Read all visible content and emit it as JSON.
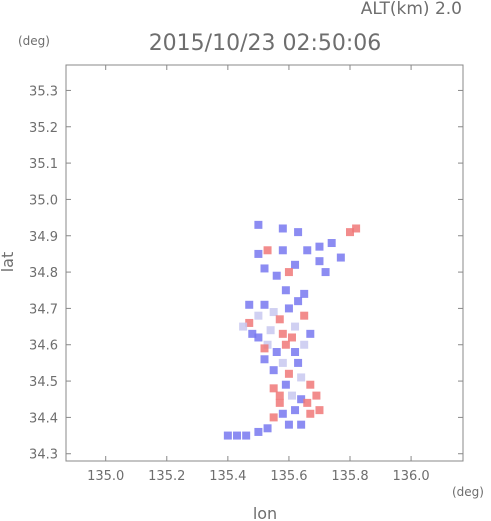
{
  "chart_data": {
    "type": "heatmap",
    "title": "2015/10/23 02:50:06",
    "subtitle": "ALT(km) 2.0",
    "xlabel": "lon",
    "ylabel": "lat",
    "x_unit": "(deg)",
    "y_unit": "(deg)",
    "xlim": [
      134.87,
      136.17
    ],
    "ylim": [
      34.28,
      35.37
    ],
    "x_ticks": [
      135.0,
      135.2,
      135.4,
      135.6,
      135.8,
      136.0
    ],
    "x_tick_labels": [
      "135.0",
      "135.2",
      "135.4",
      "135.6",
      "135.8",
      "136.0"
    ],
    "y_ticks": [
      34.3,
      34.4,
      34.5,
      34.6,
      34.7,
      34.8,
      34.9,
      35.0,
      35.1,
      35.2,
      35.3
    ],
    "y_tick_labels": [
      "34.3",
      "34.4",
      "34.5",
      "34.6",
      "34.7",
      "34.8",
      "34.9",
      "35.0",
      "35.1",
      "35.2",
      "35.3"
    ],
    "grid": false,
    "colors": {
      "positive": "#f07878",
      "negative": "#7878f0",
      "neutral": "#c8c8f0",
      "axis": "#888888"
    },
    "cells": [
      [
        135.58,
        34.92,
        -1
      ],
      [
        135.63,
        34.91,
        -1
      ],
      [
        135.5,
        34.93,
        -1
      ],
      [
        135.8,
        34.91,
        1
      ],
      [
        135.82,
        34.92,
        1
      ],
      [
        135.53,
        34.86,
        1
      ],
      [
        135.5,
        34.85,
        -1
      ],
      [
        135.58,
        34.86,
        -1
      ],
      [
        135.66,
        34.86,
        -1
      ],
      [
        135.7,
        34.87,
        -1
      ],
      [
        135.74,
        34.88,
        -1
      ],
      [
        135.77,
        34.84,
        -1
      ],
      [
        135.62,
        34.82,
        -1
      ],
      [
        135.6,
        34.8,
        1
      ],
      [
        135.56,
        34.79,
        -1
      ],
      [
        135.52,
        34.81,
        -1
      ],
      [
        135.59,
        34.75,
        -1
      ],
      [
        135.65,
        34.74,
        -1
      ],
      [
        135.72,
        34.8,
        -1
      ],
      [
        135.7,
        34.83,
        -1
      ],
      [
        135.47,
        34.71,
        -1
      ],
      [
        135.47,
        34.66,
        1
      ],
      [
        135.45,
        34.65,
        0
      ],
      [
        135.5,
        34.68,
        0
      ],
      [
        135.52,
        34.71,
        -1
      ],
      [
        135.55,
        34.69,
        0
      ],
      [
        135.57,
        34.67,
        1
      ],
      [
        135.6,
        34.7,
        -1
      ],
      [
        135.63,
        34.72,
        -1
      ],
      [
        135.65,
        34.68,
        1
      ],
      [
        135.62,
        34.65,
        0
      ],
      [
        135.58,
        34.63,
        1
      ],
      [
        135.54,
        34.64,
        0
      ],
      [
        135.5,
        34.62,
        -1
      ],
      [
        135.53,
        34.6,
        0
      ],
      [
        135.56,
        34.58,
        -1
      ],
      [
        135.59,
        34.6,
        1
      ],
      [
        135.62,
        34.58,
        -1
      ],
      [
        135.65,
        34.6,
        0
      ],
      [
        135.67,
        34.63,
        -1
      ],
      [
        135.63,
        34.55,
        -1
      ],
      [
        135.58,
        34.55,
        0
      ],
      [
        135.55,
        34.53,
        -1
      ],
      [
        135.52,
        34.56,
        -1
      ],
      [
        135.6,
        34.52,
        1
      ],
      [
        135.64,
        34.51,
        0
      ],
      [
        135.67,
        34.49,
        1
      ],
      [
        135.59,
        34.49,
        -1
      ],
      [
        135.55,
        34.48,
        1
      ],
      [
        135.57,
        34.46,
        1
      ],
      [
        135.61,
        34.46,
        0
      ],
      [
        135.64,
        34.45,
        -1
      ],
      [
        135.66,
        34.44,
        1
      ],
      [
        135.69,
        34.46,
        1
      ],
      [
        135.7,
        34.42,
        1
      ],
      [
        135.67,
        34.41,
        1
      ],
      [
        135.62,
        34.42,
        -1
      ],
      [
        135.58,
        34.41,
        -1
      ],
      [
        135.55,
        34.4,
        1
      ],
      [
        135.6,
        34.38,
        -1
      ],
      [
        135.64,
        34.38,
        -1
      ],
      [
        135.53,
        34.37,
        -1
      ],
      [
        135.5,
        34.36,
        -1
      ],
      [
        135.46,
        34.35,
        -1
      ],
      [
        135.43,
        34.35,
        -1
      ],
      [
        135.4,
        34.35,
        -1
      ],
      [
        135.57,
        34.44,
        1
      ],
      [
        135.52,
        34.59,
        1
      ],
      [
        135.48,
        34.63,
        -1
      ],
      [
        135.61,
        34.62,
        1
      ]
    ]
  }
}
